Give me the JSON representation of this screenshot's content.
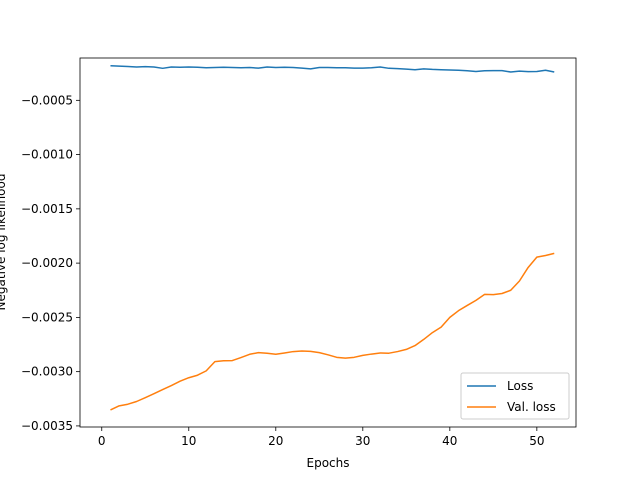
{
  "chart_data": {
    "type": "line",
    "xlabel": "Epochs",
    "ylabel": "Negative log likelihood",
    "xlim": [
      -2.5,
      54.5
    ],
    "ylim": [
      -0.00351,
      -0.00011
    ],
    "x_ticks": [
      0,
      10,
      20,
      30,
      40,
      50
    ],
    "x_tick_labels": [
      "0",
      "10",
      "20",
      "30",
      "40",
      "50"
    ],
    "y_ticks": [
      -0.0035,
      -0.003,
      -0.0025,
      -0.002,
      -0.0015,
      -0.001,
      -0.0005
    ],
    "y_tick_labels": [
      "−0.0035",
      "−0.0030",
      "−0.0025",
      "−0.0020",
      "−0.0015",
      "−0.0010",
      "−0.0005"
    ],
    "grid": false,
    "legend_position": "lower-right",
    "x": [
      1,
      2,
      3,
      4,
      5,
      6,
      7,
      8,
      9,
      10,
      11,
      12,
      13,
      14,
      15,
      16,
      17,
      18,
      19,
      20,
      21,
      22,
      23,
      24,
      25,
      26,
      27,
      28,
      29,
      30,
      31,
      32,
      33,
      34,
      35,
      36,
      37,
      38,
      39,
      40,
      41,
      42,
      43,
      44,
      45,
      46,
      47,
      48,
      49,
      50,
      51,
      52
    ],
    "series": [
      {
        "name": "Loss",
        "color": "#1f77b4",
        "values": [
          -0.000181,
          -0.000185,
          -0.000188,
          -0.000193,
          -0.00019,
          -0.000193,
          -0.000205,
          -0.000193,
          -0.000195,
          -0.000193,
          -0.000195,
          -0.0002,
          -0.000198,
          -0.000195,
          -0.000198,
          -0.0002,
          -0.000198,
          -0.000203,
          -0.000193,
          -0.000198,
          -0.000195,
          -0.000198,
          -0.000203,
          -0.00021,
          -0.000198,
          -0.000198,
          -0.0002,
          -0.0002,
          -0.000203,
          -0.000203,
          -0.0002,
          -0.000193,
          -0.000205,
          -0.000208,
          -0.000213,
          -0.000218,
          -0.00021,
          -0.000215,
          -0.000218,
          -0.00022,
          -0.000223,
          -0.000228,
          -0.000234,
          -0.000228,
          -0.000226,
          -0.000226,
          -0.000239,
          -0.000231,
          -0.000236,
          -0.000234,
          -0.000223,
          -0.000239
        ]
      },
      {
        "name": "Val. loss",
        "color": "#ff7f0e",
        "values": [
          -0.003353,
          -0.003315,
          -0.0033,
          -0.003275,
          -0.00324,
          -0.003203,
          -0.003165,
          -0.003128,
          -0.003088,
          -0.003056,
          -0.003033,
          -0.002993,
          -0.002908,
          -0.0029,
          -0.002898,
          -0.00287,
          -0.00284,
          -0.002825,
          -0.00283,
          -0.00284,
          -0.002828,
          -0.002815,
          -0.00281,
          -0.002813,
          -0.002825,
          -0.002845,
          -0.002868,
          -0.002875,
          -0.002868,
          -0.00285,
          -0.002838,
          -0.002828,
          -0.00283,
          -0.002815,
          -0.002795,
          -0.00276,
          -0.002703,
          -0.00264,
          -0.00259,
          -0.0025,
          -0.002438,
          -0.00239,
          -0.002343,
          -0.002288,
          -0.00229,
          -0.00228,
          -0.00225,
          -0.002165,
          -0.00204,
          -0.001945,
          -0.00193,
          -0.00191
        ]
      }
    ]
  }
}
